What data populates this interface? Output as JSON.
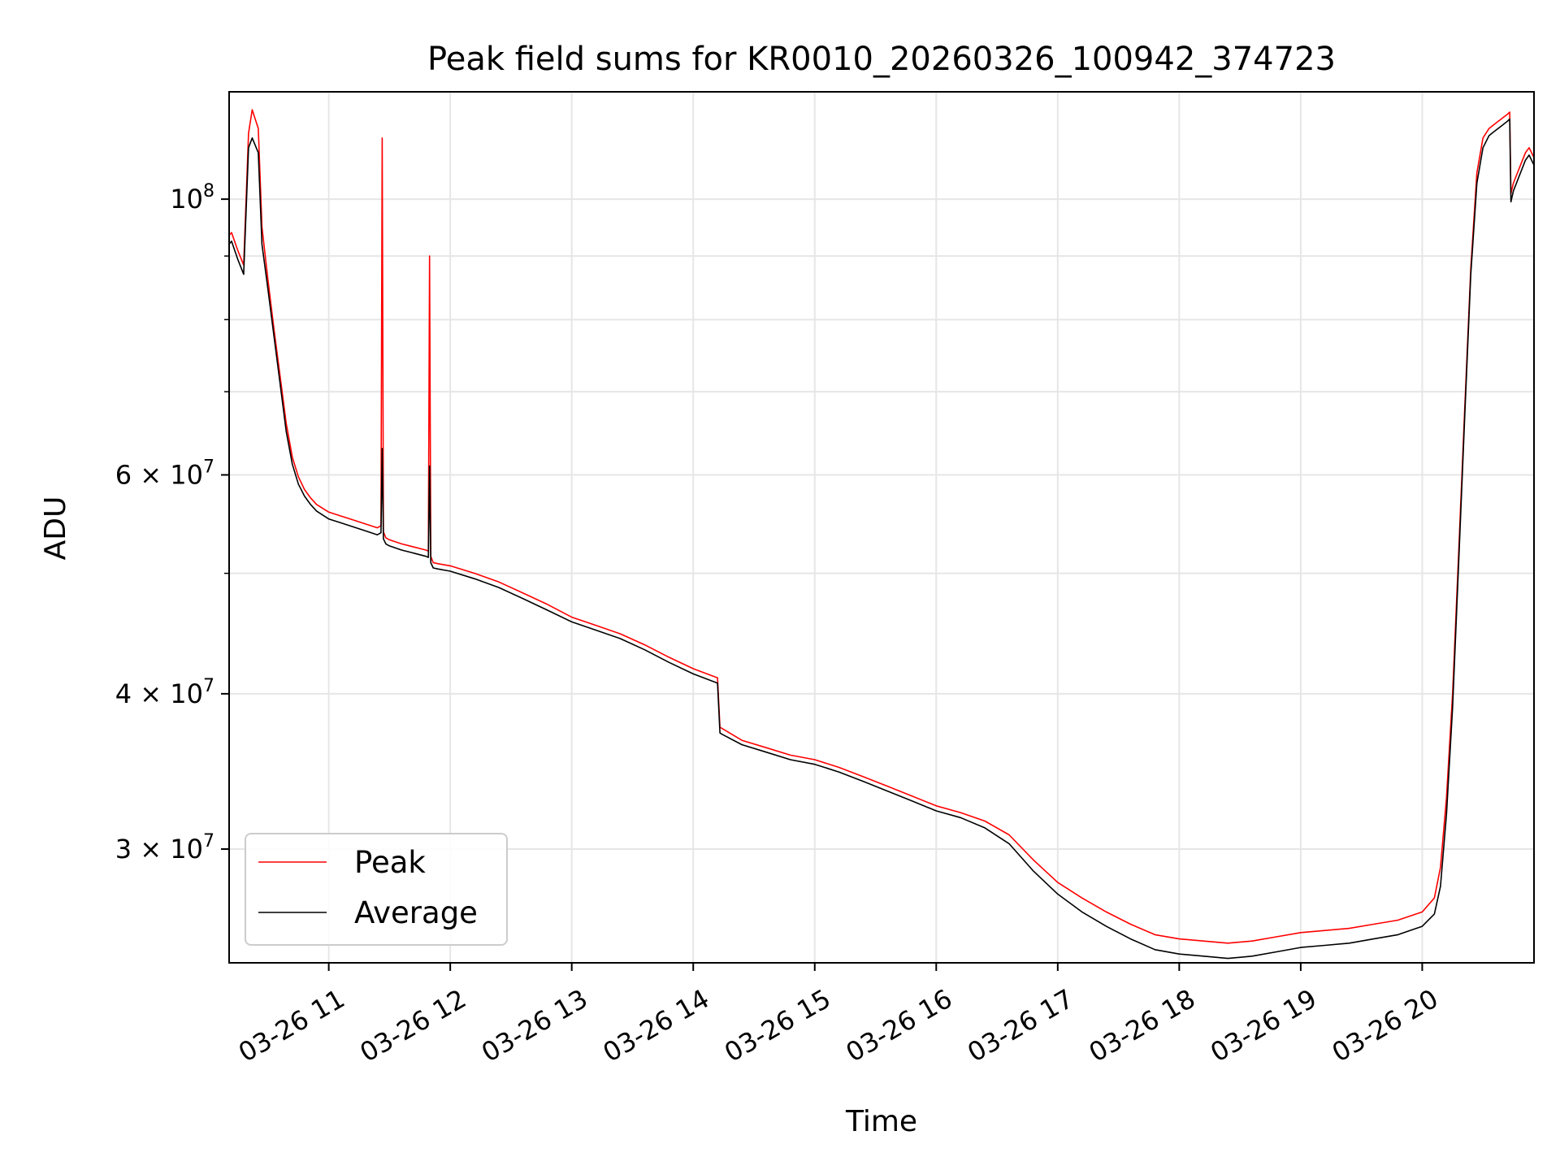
{
  "chart_data": {
    "type": "line",
    "title": "Peak field sums for KR0010_20260326_100942_374723",
    "xlabel": "Time",
    "ylabel": "ADU",
    "yscale": "log",
    "ylim": [
      24300000,
      122000000
    ],
    "xlim_hours": [
      10.18,
      20.92
    ],
    "grid": true,
    "legend_position": "lower left",
    "x_ticks": [
      {
        "hour": 11,
        "label": "03-26 11"
      },
      {
        "hour": 12,
        "label": "03-26 12"
      },
      {
        "hour": 13,
        "label": "03-26 13"
      },
      {
        "hour": 14,
        "label": "03-26 14"
      },
      {
        "hour": 15,
        "label": "03-26 15"
      },
      {
        "hour": 16,
        "label": "03-26 16"
      },
      {
        "hour": 17,
        "label": "03-26 17"
      },
      {
        "hour": 18,
        "label": "03-26 18"
      },
      {
        "hour": 19,
        "label": "03-26 19"
      },
      {
        "hour": 20,
        "label": "03-26 20"
      }
    ],
    "y_ticks": [
      {
        "value": 100000000,
        "mantissa": "",
        "exponent": "8",
        "base": "10"
      },
      {
        "value": 60000000,
        "mantissa": "6",
        "exponent": "7",
        "base": "10"
      },
      {
        "value": 40000000,
        "mantissa": "4",
        "exponent": "7",
        "base": "10"
      },
      {
        "value": 30000000,
        "mantissa": "3",
        "exponent": "7",
        "base": "10"
      }
    ],
    "y_minor_ticks": [
      50000000,
      70000000,
      80000000,
      90000000
    ],
    "series": [
      {
        "name": "Peak",
        "color": "#ff0000",
        "x_hours": [
          10.18,
          10.2,
          10.25,
          10.3,
          10.34,
          10.37,
          10.42,
          10.45,
          10.5,
          10.55,
          10.6,
          10.65,
          10.7,
          10.75,
          10.8,
          10.85,
          10.9,
          11.0,
          11.1,
          11.2,
          11.3,
          11.4,
          11.43,
          11.44,
          11.45,
          11.47,
          11.5,
          11.6,
          11.7,
          11.8,
          11.82,
          11.83,
          11.84,
          11.86,
          11.9,
          12.0,
          12.2,
          12.4,
          12.6,
          12.8,
          13.0,
          13.2,
          13.4,
          13.6,
          13.8,
          14.0,
          14.2,
          14.22,
          14.24,
          14.4,
          14.6,
          14.8,
          15.0,
          15.2,
          15.4,
          15.6,
          15.8,
          16.0,
          16.2,
          16.4,
          16.6,
          16.8,
          17.0,
          17.2,
          17.4,
          17.6,
          17.8,
          18.0,
          18.2,
          18.4,
          18.6,
          18.8,
          19.0,
          19.2,
          19.4,
          19.6,
          19.8,
          20.0,
          20.1,
          20.15,
          20.2,
          20.25,
          20.3,
          20.35,
          20.4,
          20.45,
          20.5,
          20.55,
          20.6,
          20.65,
          20.7,
          20.72,
          20.73,
          20.75,
          20.8,
          20.85,
          20.88,
          20.92
        ],
        "values": [
          93500000,
          94000000,
          91000000,
          88500000,
          113000000,
          118000000,
          114000000,
          95000000,
          86000000,
          78500000,
          72000000,
          66000000,
          62000000,
          59800000,
          58400000,
          57500000,
          56800000,
          56000000,
          55600000,
          55200000,
          54800000,
          54400000,
          54600000,
          112000000,
          54000000,
          53400000,
          53200000,
          52800000,
          52500000,
          52200000,
          52100000,
          90000000,
          51600000,
          51000000,
          50900000,
          50700000,
          50000000,
          49200000,
          48200000,
          47200000,
          46100000,
          45400000,
          44700000,
          43800000,
          42800000,
          41900000,
          41200000,
          37600000,
          37500000,
          36700000,
          36200000,
          35700000,
          35400000,
          34900000,
          34300000,
          33700000,
          33100000,
          32500000,
          32100000,
          31600000,
          30800000,
          29400000,
          28200000,
          27400000,
          26700000,
          26100000,
          25600000,
          25400000,
          25300000,
          25200000,
          25300000,
          25500000,
          25700000,
          25800000,
          25900000,
          26100000,
          26300000,
          26700000,
          27400000,
          29000000,
          33000000,
          40000000,
          52000000,
          68000000,
          88000000,
          105000000,
          112000000,
          114000000,
          115000000,
          116000000,
          117000000,
          117500000,
          101000000,
          103000000,
          106000000,
          109000000,
          110000000,
          108000000
        ]
      },
      {
        "name": "Average",
        "color": "#000000",
        "x_hours": [
          10.18,
          10.2,
          10.25,
          10.3,
          10.34,
          10.37,
          10.42,
          10.45,
          10.5,
          10.55,
          10.6,
          10.65,
          10.7,
          10.75,
          10.8,
          10.85,
          10.9,
          11.0,
          11.1,
          11.2,
          11.3,
          11.4,
          11.43,
          11.44,
          11.45,
          11.47,
          11.5,
          11.6,
          11.7,
          11.8,
          11.82,
          11.83,
          11.84,
          11.86,
          11.9,
          12.0,
          12.2,
          12.4,
          12.6,
          12.8,
          13.0,
          13.2,
          13.4,
          13.6,
          13.8,
          14.0,
          14.2,
          14.22,
          14.24,
          14.4,
          14.6,
          14.8,
          15.0,
          15.2,
          15.4,
          15.6,
          15.8,
          16.0,
          16.2,
          16.4,
          16.6,
          16.8,
          17.0,
          17.2,
          17.4,
          17.6,
          17.8,
          18.0,
          18.2,
          18.4,
          18.6,
          18.8,
          19.0,
          19.2,
          19.4,
          19.6,
          19.8,
          20.0,
          20.1,
          20.15,
          20.2,
          20.25,
          20.3,
          20.35,
          20.4,
          20.45,
          20.5,
          20.55,
          20.6,
          20.65,
          20.7,
          20.72,
          20.73,
          20.75,
          20.8,
          20.85,
          20.88,
          20.92
        ],
        "values": [
          92000000,
          92500000,
          89500000,
          87000000,
          110000000,
          112000000,
          109000000,
          92000000,
          84500000,
          77500000,
          71000000,
          65000000,
          61200000,
          59000000,
          57700000,
          56800000,
          56100000,
          55300000,
          54900000,
          54500000,
          54100000,
          53700000,
          53900000,
          63000000,
          53300000,
          52800000,
          52600000,
          52200000,
          51900000,
          51600000,
          51500000,
          61000000,
          51000000,
          50500000,
          50400000,
          50200000,
          49500000,
          48700000,
          47700000,
          46700000,
          45700000,
          45000000,
          44300000,
          43400000,
          42400000,
          41500000,
          40800000,
          37200000,
          37100000,
          36400000,
          35900000,
          35400000,
          35100000,
          34600000,
          34000000,
          33400000,
          32800000,
          32200000,
          31800000,
          31200000,
          30300000,
          28800000,
          27600000,
          26700000,
          26000000,
          25400000,
          24900000,
          24700000,
          24600000,
          24500000,
          24600000,
          24800000,
          25000000,
          25100000,
          25200000,
          25400000,
          25600000,
          26000000,
          26600000,
          28000000,
          32000000,
          39000000,
          51000000,
          67000000,
          87000000,
          103000000,
          110000000,
          112500000,
          113500000,
          114500000,
          115500000,
          116000000,
          99500000,
          101500000,
          104500000,
          107500000,
          108500000,
          106500000
        ]
      }
    ]
  }
}
